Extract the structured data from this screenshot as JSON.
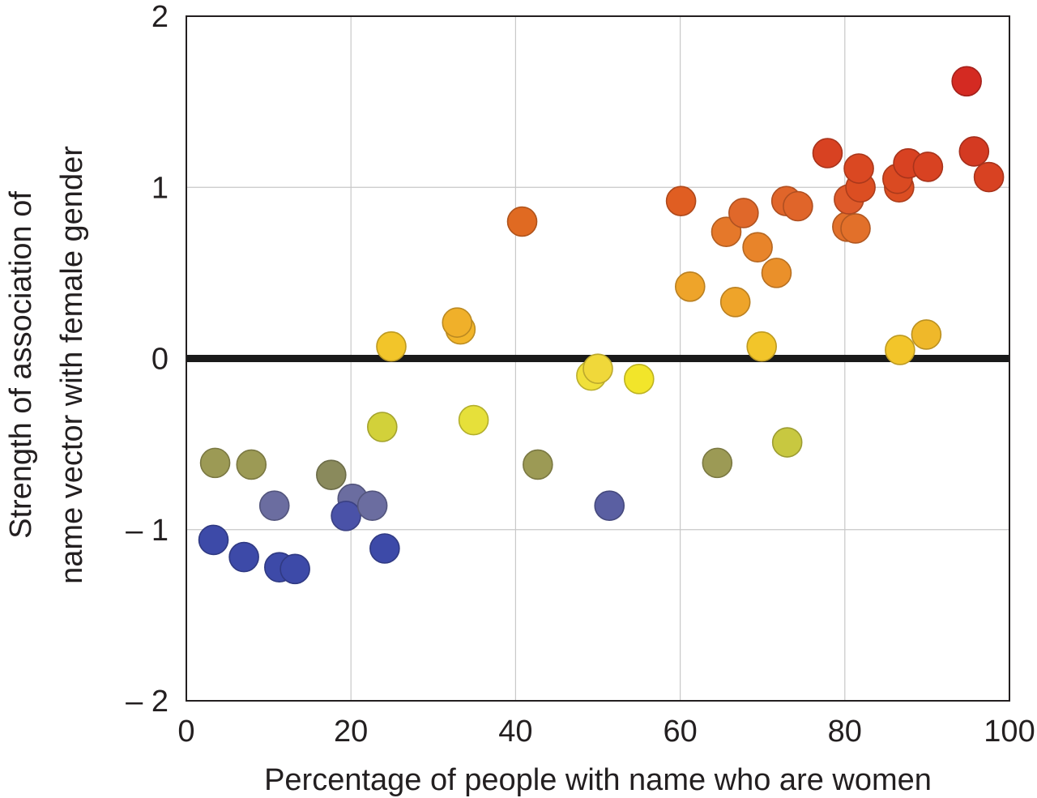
{
  "chart_data": {
    "type": "scatter",
    "title": "",
    "xlabel": "Percentage of people with name who are women",
    "ylabel_lines": [
      "Strength of association of",
      "name vector with female gender"
    ],
    "xlim": [
      0,
      100
    ],
    "ylim": [
      -2,
      2
    ],
    "x_ticks": [
      {
        "value": 0,
        "label": "0"
      },
      {
        "value": 20,
        "label": "20"
      },
      {
        "value": 40,
        "label": "40"
      },
      {
        "value": 60,
        "label": "60"
      },
      {
        "value": 80,
        "label": "80"
      },
      {
        "value": 100,
        "label": "100"
      }
    ],
    "y_ticks": [
      {
        "value": -2,
        "label": "– 2"
      },
      {
        "value": -1,
        "label": "– 1"
      },
      {
        "value": 0,
        "label": "0"
      },
      {
        "value": 1,
        "label": "1"
      },
      {
        "value": 2,
        "label": "2"
      }
    ],
    "grid": true,
    "reference_line": {
      "y": 0,
      "color": "#1a1a1a"
    },
    "points": [
      {
        "x": 3.5,
        "y": -0.61,
        "color": "#9c9a55"
      },
      {
        "x": 3.3,
        "y": -1.06,
        "color": "#3d4aa8"
      },
      {
        "x": 7.0,
        "y": -1.16,
        "color": "#3d4aa8"
      },
      {
        "x": 7.9,
        "y": -0.62,
        "color": "#9c9a55"
      },
      {
        "x": 10.7,
        "y": -0.86,
        "color": "#6b6da0"
      },
      {
        "x": 11.3,
        "y": -1.22,
        "color": "#3d4aa8"
      },
      {
        "x": 13.2,
        "y": -1.23,
        "color": "#3d4aa8"
      },
      {
        "x": 17.6,
        "y": -0.68,
        "color": "#8a8a5c"
      },
      {
        "x": 20.2,
        "y": -0.82,
        "color": "#6b6da0"
      },
      {
        "x": 19.4,
        "y": -0.92,
        "color": "#4a52a8"
      },
      {
        "x": 22.6,
        "y": -0.86,
        "color": "#6b6da0"
      },
      {
        "x": 24.1,
        "y": -1.11,
        "color": "#3d4aa8"
      },
      {
        "x": 23.8,
        "y": -0.4,
        "color": "#d2d13a"
      },
      {
        "x": 24.9,
        "y": 0.07,
        "color": "#f2c52a"
      },
      {
        "x": 33.3,
        "y": 0.17,
        "color": "#f2b52a"
      },
      {
        "x": 32.9,
        "y": 0.21,
        "color": "#f0b02a"
      },
      {
        "x": 34.9,
        "y": -0.36,
        "color": "#e6e03a"
      },
      {
        "x": 40.8,
        "y": 0.8,
        "color": "#e06a22"
      },
      {
        "x": 42.7,
        "y": -0.62,
        "color": "#9c9a55"
      },
      {
        "x": 49.2,
        "y": -0.1,
        "color": "#f0e03a"
      },
      {
        "x": 50.0,
        "y": -0.06,
        "color": "#f0d83a"
      },
      {
        "x": 51.4,
        "y": -0.86,
        "color": "#5a5fa2"
      },
      {
        "x": 55.0,
        "y": -0.12,
        "color": "#f2e52a"
      },
      {
        "x": 60.1,
        "y": 0.92,
        "color": "#e05e22"
      },
      {
        "x": 61.2,
        "y": 0.42,
        "color": "#eea42a"
      },
      {
        "x": 64.5,
        "y": -0.61,
        "color": "#9c9a55"
      },
      {
        "x": 65.6,
        "y": 0.74,
        "color": "#e5782a"
      },
      {
        "x": 66.7,
        "y": 0.33,
        "color": "#eea42a"
      },
      {
        "x": 67.7,
        "y": 0.85,
        "color": "#e0682a"
      },
      {
        "x": 69.4,
        "y": 0.65,
        "color": "#e8842a"
      },
      {
        "x": 69.9,
        "y": 0.07,
        "color": "#f2c52a"
      },
      {
        "x": 71.7,
        "y": 0.5,
        "color": "#ea902a"
      },
      {
        "x": 72.9,
        "y": 0.92,
        "color": "#e0652a"
      },
      {
        "x": 73.0,
        "y": -0.49,
        "color": "#c8c840"
      },
      {
        "x": 74.3,
        "y": 0.89,
        "color": "#e0652a"
      },
      {
        "x": 77.9,
        "y": 1.2,
        "color": "#d84222"
      },
      {
        "x": 80.3,
        "y": 0.77,
        "color": "#e2702a"
      },
      {
        "x": 80.5,
        "y": 0.93,
        "color": "#de5a2a"
      },
      {
        "x": 81.3,
        "y": 0.76,
        "color": "#e2702a"
      },
      {
        "x": 81.9,
        "y": 1.0,
        "color": "#dc4e22"
      },
      {
        "x": 81.7,
        "y": 1.11,
        "color": "#da4822"
      },
      {
        "x": 86.6,
        "y": 1.0,
        "color": "#dc4e22"
      },
      {
        "x": 86.7,
        "y": 0.05,
        "color": "#f2c52a"
      },
      {
        "x": 86.4,
        "y": 1.05,
        "color": "#da4a22"
      },
      {
        "x": 87.7,
        "y": 1.14,
        "color": "#d84222"
      },
      {
        "x": 90.1,
        "y": 1.12,
        "color": "#d84222"
      },
      {
        "x": 89.9,
        "y": 0.14,
        "color": "#efb82a"
      },
      {
        "x": 94.8,
        "y": 1.62,
        "color": "#d42a22"
      },
      {
        "x": 95.7,
        "y": 1.21,
        "color": "#d43a22"
      },
      {
        "x": 97.5,
        "y": 1.06,
        "color": "#d84222"
      }
    ]
  }
}
